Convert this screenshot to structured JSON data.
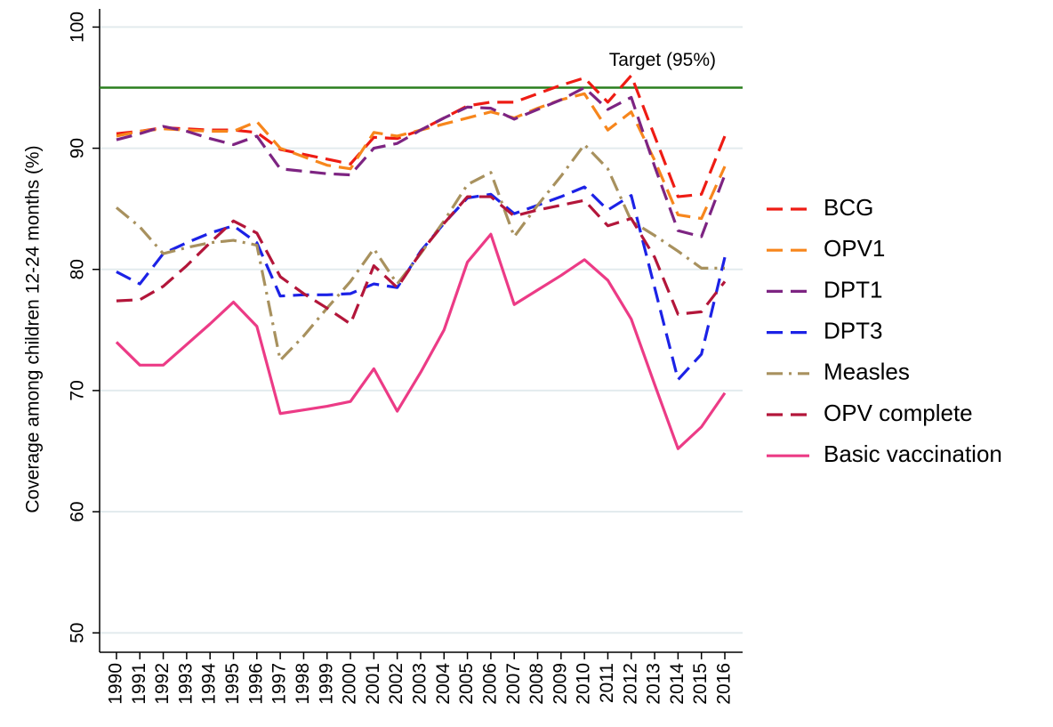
{
  "chart_data": {
    "type": "line",
    "y_label": "Coverage among children 12-24 months (%)",
    "x": [
      1990,
      1991,
      1992,
      1993,
      1994,
      1995,
      1996,
      1997,
      1998,
      1999,
      2000,
      2001,
      2002,
      2003,
      2004,
      2005,
      2006,
      2007,
      2008,
      2009,
      2010,
      2011,
      2012,
      2013,
      2014,
      2015,
      2016
    ],
    "xlim": [
      1989.28,
      2016.76
    ],
    "ylim": [
      48.4,
      101.5
    ],
    "yticks": [
      50,
      60,
      70,
      80,
      90,
      100
    ],
    "grid": true,
    "legend": "right",
    "reference_line": {
      "value": 95,
      "label": "Target (95%)",
      "color": "#2a7f1e"
    },
    "series": [
      {
        "name": "BCG",
        "color": "#ee1c14",
        "style": "dashed",
        "values": [
          91.2,
          91.4,
          91.7,
          91.6,
          91.5,
          91.5,
          91.3,
          89.9,
          89.5,
          89.1,
          88.7,
          90.9,
          90.8,
          91.5,
          92.5,
          93.5,
          93.8,
          93.8,
          94.5,
          95.2,
          95.8,
          93.8,
          96.0,
          91.0,
          86.0,
          86.2,
          91.0
        ]
      },
      {
        "name": "OPV1",
        "color": "#f7861c",
        "style": "dashed",
        "values": [
          91.0,
          91.4,
          91.6,
          91.5,
          91.4,
          91.4,
          92.2,
          90.0,
          89.3,
          88.6,
          88.3,
          91.3,
          91.0,
          91.5,
          92.0,
          92.5,
          93.0,
          92.5,
          93.3,
          94.0,
          94.5,
          91.5,
          93.0,
          89.0,
          84.5,
          84.2,
          88.5
        ]
      },
      {
        "name": "DPT1",
        "color": "#7d2482",
        "style": "dashed",
        "values": [
          90.7,
          91.2,
          91.8,
          91.4,
          90.8,
          90.3,
          91.0,
          88.3,
          88.1,
          87.9,
          87.8,
          90.0,
          90.4,
          91.5,
          92.5,
          93.4,
          93.3,
          92.4,
          93.2,
          94.0,
          95.0,
          93.2,
          94.2,
          88.5,
          83.2,
          82.7,
          87.8
        ]
      },
      {
        "name": "DPT3",
        "color": "#1c22e6",
        "style": "dashed",
        "values": [
          79.8,
          78.8,
          81.3,
          82.2,
          83.0,
          83.6,
          82.2,
          77.8,
          77.9,
          77.9,
          78.0,
          78.8,
          78.5,
          81.5,
          83.8,
          85.9,
          86.2,
          84.6,
          85.3,
          86.0,
          86.8,
          84.9,
          86.1,
          78.5,
          70.9,
          73.0,
          81.0
        ]
      },
      {
        "name": "Measles",
        "color": "#a8915e",
        "style": "dashdot",
        "values": [
          85.1,
          83.5,
          81.3,
          81.8,
          82.2,
          82.4,
          82.0,
          72.5,
          74.5,
          76.8,
          79.0,
          81.7,
          78.8,
          81.3,
          84.0,
          87.0,
          88.0,
          82.7,
          85.3,
          87.7,
          90.3,
          88.3,
          84.0,
          82.8,
          81.5,
          80.1,
          80.1
        ]
      },
      {
        "name": "OPV complete",
        "color": "#b3163a",
        "style": "dashed",
        "values": [
          77.4,
          77.5,
          78.6,
          80.3,
          82.2,
          84.0,
          83.0,
          79.4,
          78.0,
          76.8,
          75.5,
          80.3,
          78.5,
          81.4,
          83.8,
          86.0,
          86.0,
          84.4,
          84.9,
          85.3,
          85.7,
          83.6,
          84.2,
          81.0,
          76.3,
          76.5,
          79.0
        ]
      },
      {
        "name": "Basic vaccination",
        "color": "#ec3b86",
        "style": "solid",
        "values": [
          74.0,
          72.1,
          72.1,
          73.8,
          75.5,
          77.3,
          75.3,
          68.1,
          68.4,
          68.7,
          69.1,
          71.8,
          68.3,
          71.5,
          75.0,
          80.6,
          82.9,
          77.1,
          78.3,
          79.5,
          80.8,
          79.1,
          75.9,
          70.5,
          65.2,
          67.0,
          69.8
        ]
      }
    ]
  }
}
